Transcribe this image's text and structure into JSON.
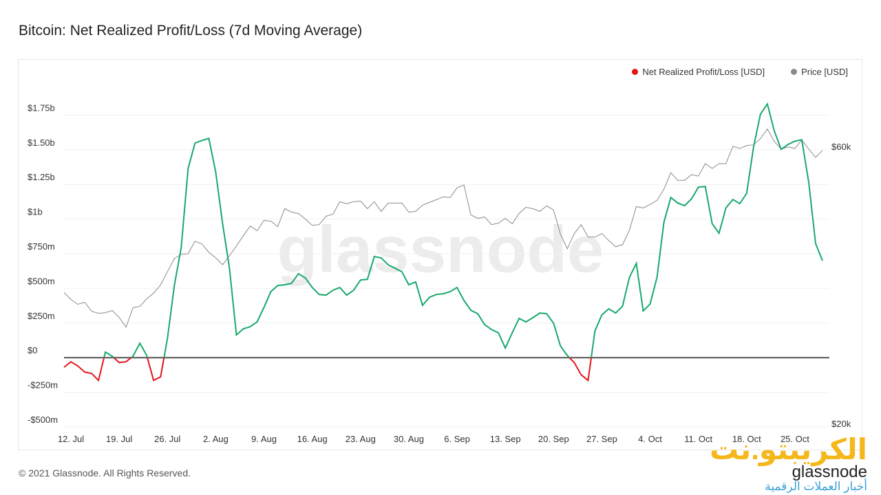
{
  "chart_data": {
    "type": "line",
    "title": "Bitcoin: Net Realized Profit/Loss (7d Moving Average)",
    "watermark": "glassnode",
    "legend": "top-right",
    "grid": true,
    "categories": [
      null,
      "12. Jul",
      null,
      null,
      null,
      null,
      null,
      null,
      "19. Jul",
      null,
      null,
      null,
      null,
      null,
      null,
      "26. Jul",
      null,
      null,
      null,
      null,
      null,
      null,
      "2. Aug",
      null,
      null,
      null,
      null,
      null,
      null,
      "9. Aug",
      null,
      null,
      null,
      null,
      null,
      null,
      "16. Aug",
      null,
      null,
      null,
      null,
      null,
      null,
      "23. Aug",
      null,
      null,
      null,
      null,
      null,
      null,
      "30. Aug",
      null,
      null,
      null,
      null,
      null,
      null,
      "6. Sep",
      null,
      null,
      null,
      null,
      null,
      null,
      "13. Sep",
      null,
      null,
      null,
      null,
      null,
      null,
      "20. Sep",
      null,
      null,
      null,
      null,
      null,
      null,
      "27. Sep",
      null,
      null,
      null,
      null,
      null,
      null,
      "4. Oct",
      null,
      null,
      null,
      null,
      null,
      null,
      "11. Oct",
      null,
      null,
      null,
      null,
      null,
      null,
      "18. Oct",
      null,
      null,
      null,
      null,
      null,
      null,
      "25. Oct",
      null,
      null,
      null,
      null
    ],
    "series": [
      {
        "name": "Net Realized Profit/Loss [USD]",
        "color": "#e3141c",
        "positive_color": "#17a86b",
        "values": [
          -69000000.0,
          -30000000.0,
          -60000000.0,
          -104000000.0,
          -114000000.0,
          -164000000.0,
          40000000.0,
          10000000.0,
          -35000000.0,
          -30000000.0,
          10000000.0,
          104000000.0,
          15000000.0,
          -164000000.0,
          -139000000.0,
          139000000.0,
          521000000.0,
          794000000.0,
          1364000000.0,
          1548000000.0,
          1567000000.0,
          1582000000.0,
          1339000000.0,
          967000000.0,
          645000000.0,
          164000000.0,
          208000000.0,
          223000000.0,
          258000000.0,
          362000000.0,
          476000000.0,
          521000000.0,
          526000000.0,
          536000000.0,
          605000000.0,
          575000000.0,
          506000000.0,
          456000000.0,
          451000000.0,
          486000000.0,
          506000000.0,
          451000000.0,
          486000000.0,
          560000000.0,
          565000000.0,
          729000000.0,
          719000000.0,
          670000000.0,
          645000000.0,
          620000000.0,
          526000000.0,
          546000000.0,
          377000000.0,
          436000000.0,
          456000000.0,
          461000000.0,
          476000000.0,
          506000000.0,
          412000000.0,
          342000000.0,
          317000000.0,
          238000000.0,
          203000000.0,
          179000000.0,
          69000000.0,
          179000000.0,
          283000000.0,
          258000000.0,
          288000000.0,
          322000000.0,
          317000000.0,
          248000000.0,
          84000000.0,
          15000000.0,
          -35000000.0,
          -124000000.0,
          -164000000.0,
          193000000.0,
          308000000.0,
          352000000.0,
          322000000.0,
          372000000.0,
          580000000.0,
          680000000.0,
          337000000.0,
          387000000.0,
          580000000.0,
          977000000.0,
          1156000000.0,
          1116000000.0,
          1096000000.0,
          1146000000.0,
          1230000000.0,
          1235000000.0,
          967000000.0,
          898000000.0,
          1081000000.0,
          1141000000.0,
          1111000000.0,
          1185000000.0,
          1518000000.0,
          1756000000.0,
          1830000000.0,
          1637000000.0,
          1503000000.0,
          1538000000.0,
          1562000000.0,
          1572000000.0,
          1265000000.0,
          823000000.0,
          699000000.0
        ]
      },
      {
        "name": "Price [USD]",
        "color": "#8a8a8a",
        "axis": "y2",
        "values": [
          39400,
          38400,
          37700,
          38000,
          36700,
          36400,
          36500,
          36800,
          35800,
          34400,
          37200,
          37400,
          38500,
          39300,
          40500,
          42400,
          44300,
          44900,
          45000,
          46800,
          46400,
          45200,
          44400,
          43400,
          44700,
          46100,
          47600,
          49000,
          48300,
          49800,
          49700,
          48900,
          51500,
          51000,
          50800,
          50000,
          49100,
          49200,
          50400,
          50700,
          52500,
          52200,
          52500,
          52600,
          51500,
          52500,
          51100,
          52300,
          52300,
          52300,
          51000,
          51100,
          52000,
          52400,
          52800,
          53200,
          53100,
          54500,
          54900,
          50600,
          50100,
          50300,
          49200,
          49400,
          50100,
          49300,
          50800,
          51700,
          51500,
          51100,
          51900,
          51300,
          47800,
          45700,
          47900,
          49200,
          47400,
          47400,
          47900,
          46900,
          46000,
          46300,
          48400,
          51800,
          51600,
          52100,
          52700,
          54300,
          56700,
          55600,
          55600,
          56400,
          56200,
          58000,
          57300,
          58000,
          58000,
          60500,
          60200,
          60600,
          60700,
          61600,
          63000,
          61200,
          60100,
          60400,
          60200,
          61400,
          60100,
          58900,
          59900
        ]
      }
    ],
    "ylim": [
      -500000000.0,
      2000000000.0
    ],
    "yticks": [
      {
        "value": -500000000.0,
        "label": "-$500m"
      },
      {
        "value": -250000000.0,
        "label": "-$250m"
      },
      {
        "value": 0,
        "label": "$0"
      },
      {
        "value": 250000000.0,
        "label": "$250m"
      },
      {
        "value": 500000000.0,
        "label": "$500m"
      },
      {
        "value": 750000000.0,
        "label": "$750m"
      },
      {
        "value": 1000000000.0,
        "label": "$1b"
      },
      {
        "value": 1250000000.0,
        "label": "$1.25b"
      },
      {
        "value": 1500000000.0,
        "label": "$1.50b"
      },
      {
        "value": 1750000000.0,
        "label": "$1.75b"
      }
    ],
    "y2lim": [
      20000,
      70000
    ],
    "y2ticks": [
      {
        "value": 20000,
        "label": "$20k"
      },
      {
        "value": 60000,
        "label": "$60k"
      }
    ]
  },
  "footer": "© 2021 Glassnode. All Rights Reserved.",
  "logo": {
    "name": "الكريبتو.نت",
    "brand": "glassnode",
    "tagline": "أخبار العملات الرقمية"
  }
}
